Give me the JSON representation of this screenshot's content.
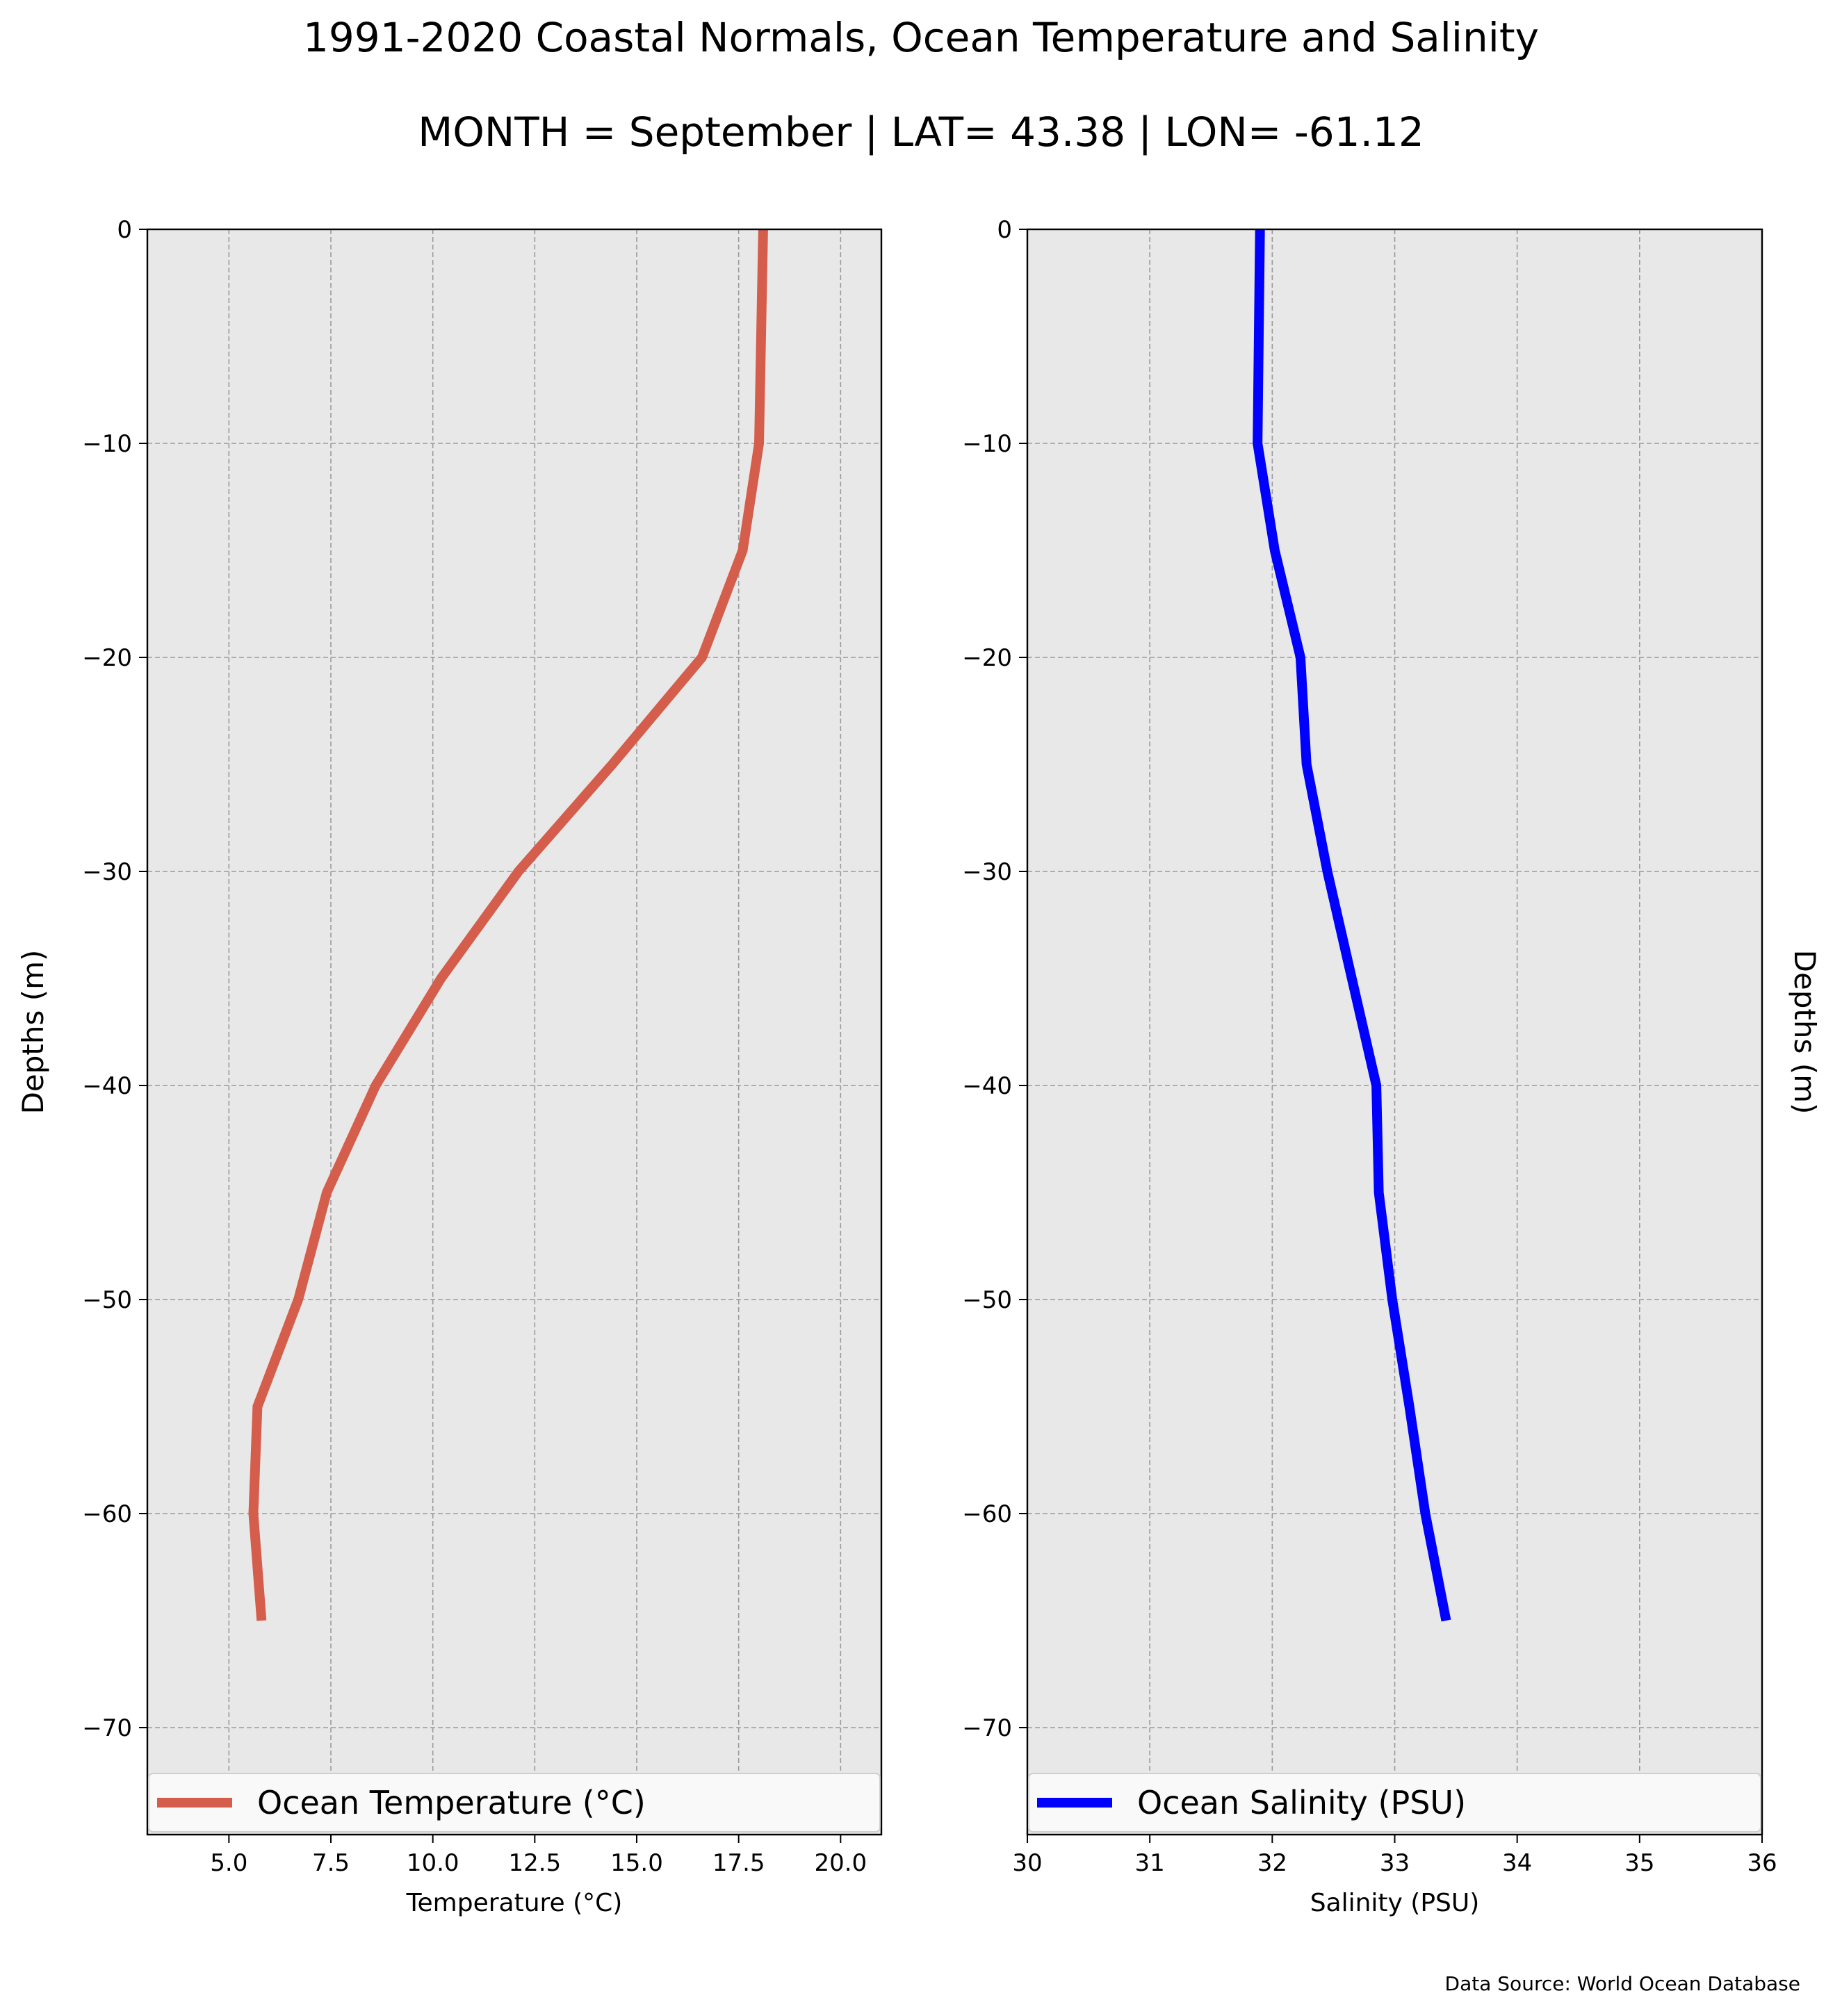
{
  "figure": {
    "title": "1991-2020 Coastal Normals, Ocean Temperature and Salinity",
    "subtitle": "MONTH = September | LAT= 43.38 | LON= -61.12",
    "source": "Data Source: World Ocean Database"
  },
  "chart_data": [
    {
      "type": "line",
      "xlabel": "Temperature ($^\\circ$C)",
      "xlabel_display": "Temperature (°C)",
      "ylabel": "Depths (m)",
      "xlim": [
        3,
        21
      ],
      "ylim": [
        -75,
        0
      ],
      "x_ticks": [
        5.0,
        7.5,
        10.0,
        12.5,
        15.0,
        17.5,
        20.0
      ],
      "x_tick_labels": [
        "5.0",
        "7.5",
        "10.0",
        "12.5",
        "15.0",
        "17.5",
        "20.0"
      ],
      "y_ticks": [
        0,
        -10,
        -20,
        -30,
        -40,
        -50,
        -60,
        -70
      ],
      "y_tick_labels": [
        "0",
        "−10",
        "−20",
        "−30",
        "−40",
        "−50",
        "−60",
        "−70"
      ],
      "grid": true,
      "legend_position": "bottom",
      "series": [
        {
          "name": "Ocean Temperature (°C)",
          "color": "#d45d4c",
          "x": [
            18.1,
            18.0,
            17.6,
            16.6,
            14.4,
            12.1,
            10.2,
            8.6,
            7.4,
            6.7,
            5.7,
            5.6,
            5.8
          ],
          "y": [
            0,
            -10,
            -15,
            -20,
            -25,
            -30,
            -35,
            -40,
            -45,
            -50,
            -55,
            -60,
            -65
          ]
        }
      ]
    },
    {
      "type": "line",
      "xlabel": "Salinity (PSU)",
      "ylabel": "Depths (m)",
      "xlim": [
        30,
        36
      ],
      "ylim": [
        -75,
        0
      ],
      "x_ticks": [
        30,
        31,
        32,
        33,
        34,
        35,
        36
      ],
      "x_tick_labels": [
        "30",
        "31",
        "32",
        "33",
        "34",
        "35",
        "36"
      ],
      "y_ticks": [
        0,
        -10,
        -20,
        -30,
        -40,
        -50,
        -60,
        -70
      ],
      "y_tick_labels": [
        "0",
        "−10",
        "−20",
        "−30",
        "−40",
        "−50",
        "−60",
        "−70"
      ],
      "grid": true,
      "legend_position": "bottom",
      "series": [
        {
          "name": "Ocean Salinity (PSU)",
          "color": "#0000ff",
          "x": [
            31.9,
            31.88,
            32.02,
            32.23,
            32.28,
            32.45,
            32.65,
            32.85,
            32.87,
            32.98,
            33.12,
            33.25,
            33.42
          ],
          "y": [
            0,
            -10,
            -15,
            -20,
            -25,
            -30,
            -35,
            -40,
            -45,
            -50,
            -55,
            -60,
            -65
          ]
        }
      ]
    }
  ]
}
